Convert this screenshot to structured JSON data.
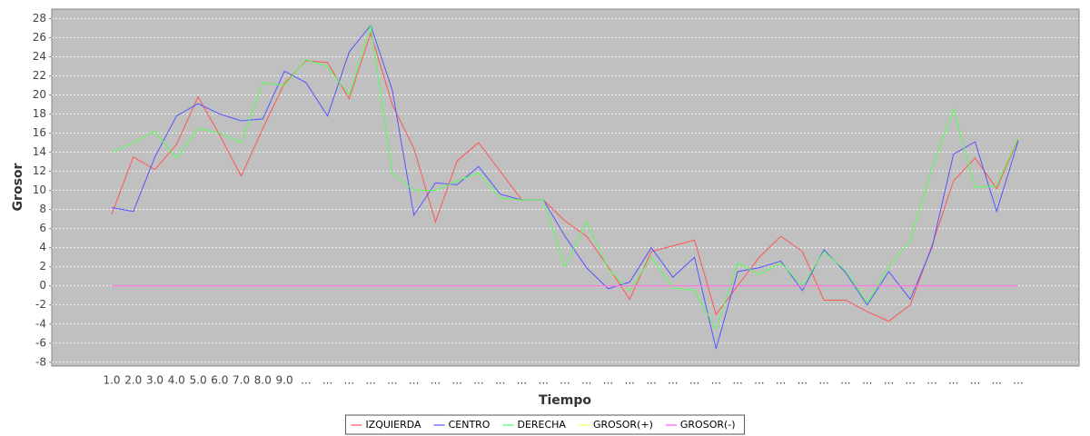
{
  "chart_data": {
    "type": "line",
    "x_label": "Tiempo",
    "y_label": "Grosor",
    "categories": [
      "1.0",
      "2.0",
      "3.0",
      "4.0",
      "5.0",
      "6.0",
      "7.0",
      "8.0",
      "9.0",
      "...",
      "...",
      "...",
      "...",
      "...",
      "...",
      "...",
      "...",
      "...",
      "...",
      "...",
      "...",
      "...",
      "...",
      "...",
      "...",
      "...",
      "...",
      "...",
      "...",
      "...",
      "...",
      "...",
      "...",
      "...",
      "...",
      "...",
      "...",
      "...",
      "...",
      "...",
      "...",
      "...",
      "..."
    ],
    "series": [
      {
        "name": "IZQUIERDA",
        "color": "#ff5555",
        "values": [
          7.5,
          13.5,
          12.2,
          14.8,
          19.8,
          15.8,
          11.5,
          16.5,
          21.2,
          23.6,
          23.4,
          19.6,
          26.5,
          19.0,
          14.4,
          6.7,
          13.1,
          15.0,
          12.0,
          9.0,
          9.0,
          6.8,
          5.2,
          2.0,
          -1.4,
          3.6,
          4.2,
          4.8,
          -3.0,
          0.0,
          3.0,
          5.2,
          3.6,
          -1.5,
          -1.5,
          -2.7,
          -3.7,
          -2.0,
          4.2,
          11.0,
          13.4,
          10.2,
          15.4
        ]
      },
      {
        "name": "CENTRO",
        "color": "#5555ff",
        "values": [
          8.2,
          7.8,
          13.5,
          17.8,
          19.1,
          18.0,
          17.3,
          17.5,
          22.5,
          21.3,
          17.8,
          24.5,
          27.3,
          20.5,
          7.4,
          10.8,
          10.6,
          12.5,
          9.6,
          9.0,
          9.0,
          5.2,
          1.9,
          -0.3,
          0.4,
          4.0,
          0.9,
          3.0,
          -6.6,
          1.5,
          1.9,
          2.6,
          -0.5,
          3.8,
          1.4,
          -2.0,
          1.5,
          -1.4,
          4.0,
          13.8,
          15.1,
          7.8,
          15.2
        ]
      },
      {
        "name": "DERECHA",
        "color": "#55ff55",
        "values": [
          14.0,
          15.0,
          16.2,
          13.4,
          16.5,
          16.0,
          15.0,
          21.3,
          21.0,
          23.7,
          23.0,
          20.0,
          27.3,
          11.8,
          10.0,
          10.0,
          11.0,
          11.8,
          9.2,
          9.0,
          9.0,
          2.0,
          6.7,
          1.8,
          -0.5,
          3.0,
          -0.2,
          -0.5,
          -4.5,
          2.4,
          1.2,
          2.4,
          0.0,
          3.6,
          1.6,
          -1.8,
          2.0,
          4.8,
          12.3,
          18.5,
          10.3,
          10.5,
          15.5
        ]
      },
      {
        "name": "GROSOR(+)",
        "color": "#ffff55",
        "values": [
          0,
          0,
          0,
          0,
          0,
          0,
          0,
          0,
          0,
          0,
          0,
          0,
          0,
          0,
          0,
          0,
          0,
          0,
          0,
          0,
          0,
          0,
          0,
          0,
          0,
          0,
          0,
          0,
          0,
          0,
          0,
          0,
          0,
          0,
          0,
          0,
          0,
          0,
          0,
          0,
          0,
          0,
          0
        ]
      },
      {
        "name": "GROSOR(-)",
        "color": "#ff55ff",
        "values": [
          0,
          0,
          0,
          0,
          0,
          0,
          0,
          0,
          0,
          0,
          0,
          0,
          0,
          0,
          0,
          0,
          0,
          0,
          0,
          0,
          0,
          0,
          0,
          0,
          0,
          0,
          0,
          0,
          0,
          0,
          0,
          0,
          0,
          0,
          0,
          0,
          0,
          0,
          0,
          0,
          0,
          0,
          0
        ]
      }
    ],
    "ylim": [
      -8.4,
      29
    ],
    "yticks": [
      -8,
      -6,
      -4,
      -2,
      0,
      2,
      4,
      6,
      8,
      10,
      12,
      14,
      16,
      18,
      20,
      22,
      24,
      26,
      28
    ],
    "grid": true,
    "legend": "bottom"
  }
}
